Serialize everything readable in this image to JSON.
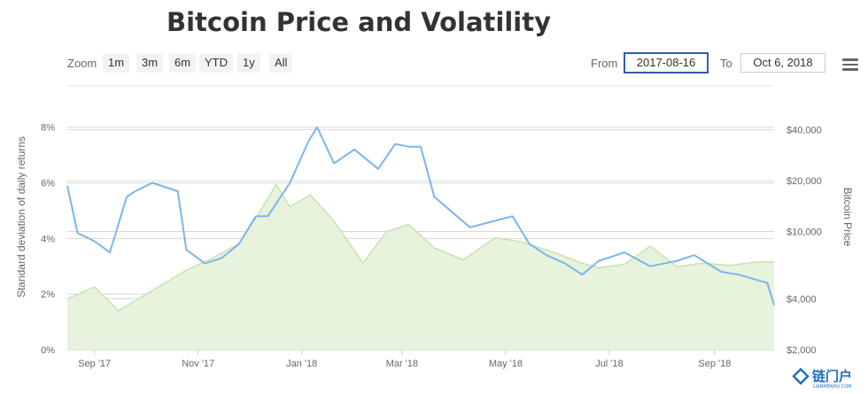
{
  "chart_data": {
    "type": "line",
    "title": "Bitcoin Price and Volatility",
    "x_axis": {
      "type": "datetime",
      "tick_labels": [
        "Sep '17",
        "Nov '17",
        "Jan '18",
        "Mar '18",
        "May '18",
        "Jul '18",
        "Sep '18"
      ],
      "range": [
        "2017-08-16",
        "2018-10-06"
      ]
    },
    "y_axis_left": {
      "label": "Standard deviation of daily returns",
      "tick_labels": [
        "0%",
        "2%",
        "4%",
        "6%",
        "8%"
      ],
      "range": [
        0,
        8.5
      ]
    },
    "y_axis_right": {
      "label": "Bitcoin Price",
      "scale": "log",
      "tick_labels": [
        "$2,000",
        "$4,000",
        "$10,000",
        "$20,000",
        "$40,000"
      ],
      "range": [
        2000,
        50000
      ]
    },
    "grid": true,
    "series": [
      {
        "name": "Bitcoin Price",
        "type": "area",
        "axis": "right",
        "color": "#c5e3b0",
        "x": [
          "2017-08-16",
          "2017-09-01",
          "2017-09-15",
          "2017-09-25",
          "2017-10-10",
          "2017-10-25",
          "2017-11-10",
          "2017-11-25",
          "2017-12-05",
          "2017-12-17",
          "2017-12-25",
          "2018-01-06",
          "2018-01-20",
          "2018-02-06",
          "2018-02-20",
          "2018-03-05",
          "2018-03-20",
          "2018-04-06",
          "2018-04-25",
          "2018-05-10",
          "2018-05-30",
          "2018-06-15",
          "2018-06-25",
          "2018-07-10",
          "2018-07-25",
          "2018-08-10",
          "2018-08-25",
          "2018-09-10",
          "2018-09-25",
          "2018-10-06"
        ],
        "values": [
          4000,
          4700,
          3400,
          3900,
          4800,
          5900,
          7000,
          8500,
          12000,
          19000,
          14000,
          16500,
          11500,
          6500,
          10000,
          11000,
          8000,
          6800,
          9200,
          8700,
          7500,
          6500,
          6100,
          6400,
          8200,
          6200,
          6500,
          6300,
          6600,
          6600
        ]
      },
      {
        "name": "Standard deviation of daily returns",
        "type": "line",
        "axis": "left",
        "color": "#7cb5ec",
        "x": [
          "2017-08-16",
          "2017-08-22",
          "2017-09-01",
          "2017-09-10",
          "2017-09-20",
          "2017-09-25",
          "2017-10-05",
          "2017-10-20",
          "2017-10-25",
          "2017-11-05",
          "2017-11-15",
          "2017-11-25",
          "2017-12-05",
          "2017-12-12",
          "2017-12-25",
          "2018-01-05",
          "2018-01-10",
          "2018-01-20",
          "2018-02-01",
          "2018-02-15",
          "2018-02-25",
          "2018-03-05",
          "2018-03-12",
          "2018-03-20",
          "2018-04-10",
          "2018-05-05",
          "2018-05-15",
          "2018-05-25",
          "2018-06-05",
          "2018-06-15",
          "2018-06-25",
          "2018-07-10",
          "2018-07-25",
          "2018-08-10",
          "2018-08-20",
          "2018-09-05",
          "2018-09-15",
          "2018-10-02",
          "2018-10-06"
        ],
        "values": [
          5.9,
          4.2,
          3.9,
          3.5,
          5.5,
          5.7,
          6.0,
          5.7,
          3.6,
          3.1,
          3.3,
          3.8,
          4.8,
          4.8,
          6.0,
          7.5,
          8.0,
          6.7,
          7.2,
          6.5,
          7.4,
          7.3,
          7.3,
          5.5,
          4.4,
          4.8,
          3.8,
          3.4,
          3.1,
          2.7,
          3.2,
          3.5,
          3.0,
          3.2,
          3.4,
          2.8,
          2.7,
          2.4,
          1.6
        ]
      }
    ]
  },
  "toolbar": {
    "zoom_label": "Zoom",
    "zoom_buttons": [
      "1m",
      "3m",
      "6m",
      "YTD",
      "1y",
      "All"
    ],
    "from_label": "From",
    "from_value": "2017-08-16",
    "to_label": "To",
    "to_value": "Oct 6, 2018"
  },
  "watermark": {
    "text": "链门户",
    "sub": "LIANMENHU.COM",
    "color": "#1f6fc5"
  }
}
